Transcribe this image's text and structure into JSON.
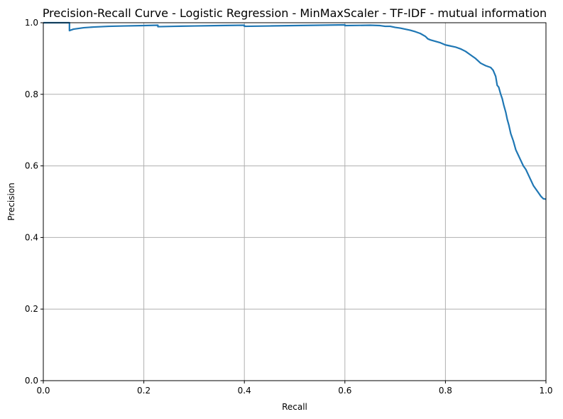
{
  "chart_data": {
    "type": "line",
    "title": "Precision-Recall Curve - Logistic Regression - MinMaxScaler - TF-IDF - mutual information",
    "xlabel": "Recall",
    "ylabel": "Precision",
    "xlim": [
      0,
      1
    ],
    "ylim": [
      0,
      1
    ],
    "xticks": [
      "0.0",
      "0.2",
      "0.4",
      "0.6",
      "0.8",
      "1.0"
    ],
    "yticks": [
      "0.0",
      "0.2",
      "0.4",
      "0.6",
      "0.8",
      "1.0"
    ],
    "grid": true,
    "color": "#1f77b4",
    "series": [
      {
        "x": [
          0.0,
          0.052,
          0.052,
          0.06,
          0.08,
          0.1,
          0.13,
          0.16,
          0.2,
          0.228,
          0.228,
          0.26,
          0.3,
          0.35,
          0.4,
          0.4,
          0.45,
          0.5,
          0.55,
          0.6,
          0.6,
          0.65,
          0.67,
          0.68,
          0.69,
          0.7,
          0.71,
          0.72,
          0.73,
          0.74,
          0.75,
          0.76,
          0.765,
          0.77,
          0.78,
          0.79,
          0.8,
          0.81,
          0.82,
          0.83,
          0.84,
          0.85,
          0.86,
          0.87,
          0.88,
          0.89,
          0.895,
          0.9,
          0.903,
          0.906,
          0.91,
          0.913,
          0.916,
          0.92,
          0.923,
          0.926,
          0.93,
          0.935,
          0.94,
          0.945,
          0.95,
          0.955,
          0.96,
          0.965,
          0.97,
          0.975,
          0.98,
          0.985,
          0.99,
          0.995,
          1.0
        ],
        "y": [
          1.0,
          1.0,
          0.978,
          0.982,
          0.986,
          0.988,
          0.99,
          0.991,
          0.992,
          0.993,
          0.989,
          0.99,
          0.991,
          0.992,
          0.993,
          0.99,
          0.991,
          0.992,
          0.993,
          0.994,
          0.992,
          0.993,
          0.992,
          0.99,
          0.99,
          0.987,
          0.985,
          0.982,
          0.979,
          0.975,
          0.97,
          0.962,
          0.955,
          0.952,
          0.948,
          0.944,
          0.938,
          0.935,
          0.932,
          0.927,
          0.92,
          0.91,
          0.9,
          0.887,
          0.88,
          0.875,
          0.867,
          0.85,
          0.825,
          0.82,
          0.8,
          0.788,
          0.77,
          0.75,
          0.73,
          0.715,
          0.69,
          0.67,
          0.645,
          0.63,
          0.615,
          0.6,
          0.59,
          0.575,
          0.56,
          0.545,
          0.535,
          0.525,
          0.515,
          0.508,
          0.507
        ]
      }
    ]
  }
}
